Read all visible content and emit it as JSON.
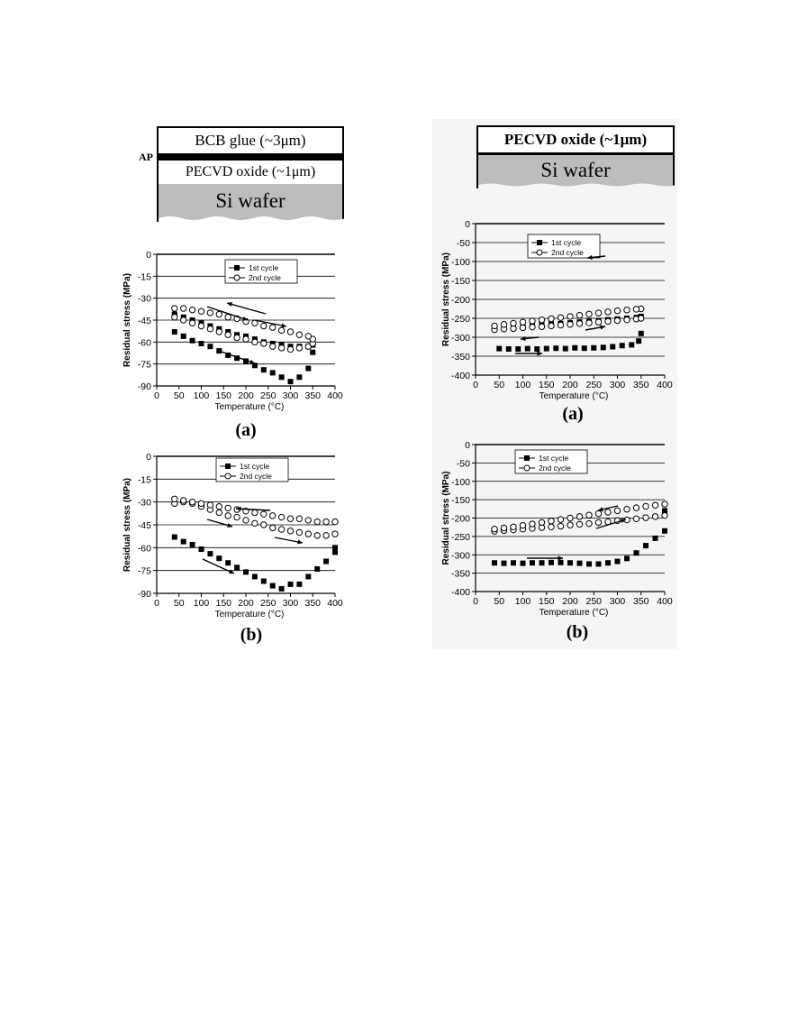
{
  "left_stack": {
    "ap_label": "AP",
    "bcb_label": "BCB glue (~3μm)",
    "oxide_label": "PECVD oxide (~1μm)",
    "wafer_label": "Si wafer"
  },
  "right_stack": {
    "oxide_label": "PECVD oxide (~1μm)",
    "wafer_label": "Si wafer"
  },
  "panel_labels": {
    "a": "(a)",
    "b": "(b)"
  },
  "chart_data": [
    {
      "id": "left-a",
      "type": "scatter",
      "xlabel": "Temperature (°C)",
      "ylabel": "Residual stress (MPa)",
      "xlim": [
        0,
        400
      ],
      "ylim": [
        -90,
        0
      ],
      "xticks": [
        0,
        50,
        100,
        150,
        200,
        250,
        300,
        350,
        400
      ],
      "yticks": [
        0,
        -15,
        -30,
        -45,
        -60,
        -75,
        -90
      ],
      "grid": true,
      "legend_position": "top-center",
      "series": [
        {
          "name": "1st cycle",
          "marker": "filled-square",
          "x": [
            40,
            60,
            80,
            100,
            120,
            140,
            160,
            180,
            200,
            220,
            240,
            260,
            280,
            300,
            320,
            340,
            350,
            350,
            340,
            320,
            300,
            280,
            260,
            240,
            220,
            200,
            180,
            160,
            140,
            120,
            100,
            80,
            60,
            40
          ],
          "y": [
            -53,
            -56,
            -59,
            -61,
            -63,
            -66,
            -69,
            -71,
            -73,
            -76,
            -79,
            -81,
            -84,
            -87,
            -84,
            -78,
            -67,
            -62,
            -63,
            -63,
            -63,
            -62,
            -61,
            -60,
            -58,
            -56,
            -55,
            -53,
            -51,
            -49,
            -47,
            -45,
            -43,
            -41
          ]
        },
        {
          "name": "2nd cycle",
          "marker": "open-circle",
          "x": [
            40,
            60,
            80,
            100,
            120,
            140,
            160,
            180,
            200,
            220,
            240,
            260,
            280,
            300,
            320,
            340,
            350,
            350,
            340,
            320,
            300,
            280,
            260,
            240,
            220,
            200,
            180,
            160,
            140,
            120,
            100,
            80,
            60,
            40
          ],
          "y": [
            -43,
            -45,
            -47,
            -49,
            -51,
            -53,
            -55,
            -57,
            -58,
            -60,
            -61,
            -63,
            -64,
            -65,
            -64,
            -63,
            -61,
            -58,
            -56,
            -55,
            -53,
            -52,
            -50,
            -49,
            -47,
            -46,
            -44,
            -43,
            -41,
            -40,
            -39,
            -38,
            -37,
            -37
          ]
        }
      ]
    },
    {
      "id": "left-b",
      "type": "scatter",
      "xlabel": "Temperature (°C)",
      "ylabel": "Residual stress (MPa)",
      "xlim": [
        0,
        400
      ],
      "ylim": [
        -90,
        0
      ],
      "xticks": [
        0,
        50,
        100,
        150,
        200,
        250,
        300,
        350,
        400
      ],
      "yticks": [
        0,
        -15,
        -30,
        -45,
        -60,
        -75,
        -90
      ],
      "grid": true,
      "legend_position": "top-center",
      "series": [
        {
          "name": "1st cycle",
          "marker": "filled-square",
          "x": [
            40,
            60,
            80,
            100,
            120,
            140,
            160,
            180,
            200,
            220,
            240,
            260,
            280,
            300,
            320,
            340,
            360,
            380,
            400,
            400
          ],
          "y": [
            -53,
            -56,
            -58,
            -61,
            -64,
            -67,
            -70,
            -73,
            -76,
            -79,
            -82,
            -85,
            -87,
            -84,
            -84,
            -79,
            -74,
            -69,
            -63,
            -60
          ]
        },
        {
          "name": "2nd cycle",
          "marker": "open-circle",
          "x": [
            40,
            60,
            80,
            100,
            120,
            140,
            160,
            180,
            200,
            220,
            240,
            260,
            280,
            300,
            320,
            340,
            360,
            380,
            400,
            400,
            380,
            360,
            340,
            320,
            300,
            280,
            260,
            240,
            220,
            200,
            180,
            160,
            140,
            120,
            100,
            80,
            60,
            40
          ],
          "y": [
            -31,
            -30,
            -31,
            -33,
            -35,
            -37,
            -39,
            -40,
            -42,
            -44,
            -45,
            -47,
            -48,
            -49,
            -50,
            -51,
            -52,
            -52,
            -51,
            -43,
            -43,
            -43,
            -42,
            -41,
            -41,
            -40,
            -39,
            -38,
            -37,
            -36,
            -35,
            -34,
            -33,
            -32,
            -31,
            -30,
            -29,
            -28
          ]
        }
      ]
    },
    {
      "id": "right-a",
      "type": "scatter",
      "xlabel": "Temperature (°C)",
      "ylabel": "Residual stress (MPa)",
      "xlim": [
        0,
        400
      ],
      "ylim": [
        -400,
        0
      ],
      "xticks": [
        0,
        50,
        100,
        150,
        200,
        250,
        300,
        350,
        400
      ],
      "yticks": [
        0,
        -50,
        -100,
        -150,
        -200,
        -250,
        -300,
        -350,
        -400
      ],
      "grid": true,
      "legend_position": "top-left",
      "series": [
        {
          "name": "1st cycle",
          "marker": "filled-square",
          "x": [
            50,
            70,
            90,
            110,
            130,
            150,
            170,
            190,
            210,
            230,
            250,
            270,
            290,
            310,
            330,
            345,
            350,
            350,
            340,
            320,
            300,
            280,
            260,
            240,
            220,
            200,
            180,
            160,
            140,
            120,
            100,
            80,
            60,
            40
          ],
          "y": [
            -330,
            -331,
            -331,
            -330,
            -331,
            -330,
            -329,
            -330,
            -328,
            -329,
            -328,
            -327,
            -325,
            -322,
            -320,
            -310,
            -290,
            -245,
            -248,
            -250,
            -252,
            -254,
            -256,
            -258,
            -260,
            -262,
            -264,
            -265,
            -266,
            -267,
            -268,
            -269,
            -270,
            -272
          ]
        },
        {
          "name": "2nd cycle",
          "marker": "open-circle",
          "x": [
            40,
            60,
            80,
            100,
            120,
            140,
            160,
            180,
            200,
            220,
            240,
            260,
            280,
            300,
            320,
            340,
            350,
            350,
            340,
            320,
            300,
            280,
            260,
            240,
            220,
            200,
            180,
            160,
            140,
            120,
            100,
            80,
            60,
            40
          ],
          "y": [
            -280,
            -278,
            -277,
            -275,
            -273,
            -272,
            -270,
            -268,
            -266,
            -264,
            -262,
            -260,
            -258,
            -256,
            -254,
            -252,
            -250,
            -225,
            -226,
            -228,
            -230,
            -233,
            -236,
            -239,
            -242,
            -245,
            -248,
            -251,
            -254,
            -257,
            -260,
            -263,
            -266,
            -270
          ]
        }
      ]
    },
    {
      "id": "right-b",
      "type": "scatter",
      "xlabel": "Temperature (°C)",
      "ylabel": "Residual stress (MPa)",
      "xlim": [
        0,
        400
      ],
      "ylim": [
        -400,
        0
      ],
      "xticks": [
        0,
        50,
        100,
        150,
        200,
        250,
        300,
        350,
        400
      ],
      "yticks": [
        0,
        -50,
        -100,
        -150,
        -200,
        -250,
        -300,
        -350,
        -400
      ],
      "grid": true,
      "legend_position": "top-left",
      "series": [
        {
          "name": "1st cycle",
          "marker": "filled-square",
          "x": [
            40,
            60,
            80,
            100,
            120,
            140,
            160,
            180,
            200,
            220,
            240,
            260,
            280,
            300,
            320,
            340,
            360,
            380,
            400,
            400
          ],
          "y": [
            -322,
            -323,
            -322,
            -323,
            -322,
            -322,
            -321,
            -321,
            -322,
            -323,
            -325,
            -325,
            -322,
            -318,
            -310,
            -295,
            -275,
            -255,
            -235,
            -180
          ]
        },
        {
          "name": "2nd cycle",
          "marker": "open-circle",
          "x": [
            40,
            60,
            80,
            100,
            120,
            140,
            160,
            180,
            200,
            220,
            240,
            260,
            280,
            300,
            320,
            340,
            360,
            380,
            400,
            400,
            380,
            360,
            340,
            320,
            300,
            280,
            260,
            240,
            220,
            200,
            180,
            160,
            140,
            120,
            100,
            80,
            60,
            40
          ],
          "y": [
            -236,
            -234,
            -232,
            -230,
            -228,
            -226,
            -224,
            -222,
            -219,
            -217,
            -215,
            -212,
            -210,
            -207,
            -205,
            -202,
            -199,
            -196,
            -193,
            -162,
            -165,
            -168,
            -172,
            -176,
            -180,
            -184,
            -188,
            -192,
            -196,
            -200,
            -204,
            -208,
            -212,
            -216,
            -220,
            -224,
            -227,
            -230
          ]
        }
      ]
    }
  ]
}
